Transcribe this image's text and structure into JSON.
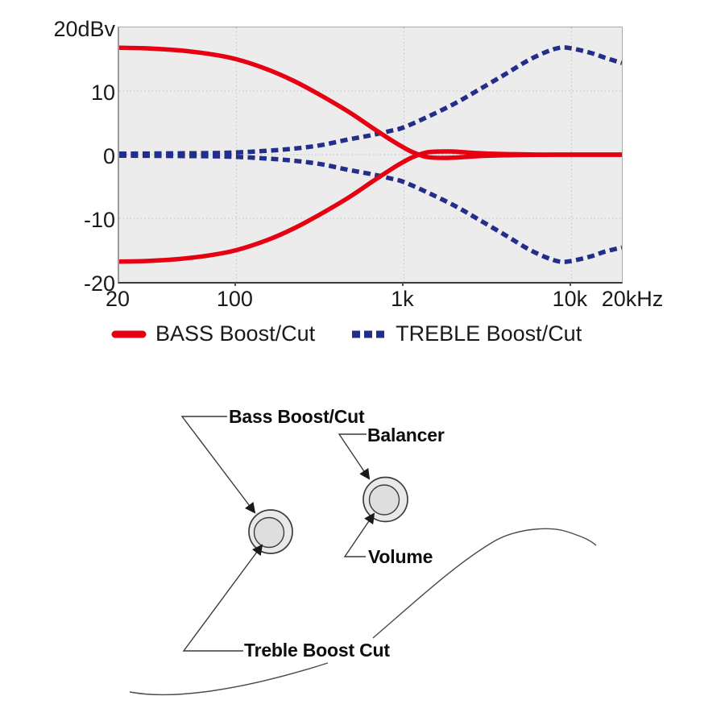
{
  "chart": {
    "legend": [
      {
        "label": "BASS Boost/Cut",
        "color": "#e60012",
        "dash": false
      },
      {
        "label": "TREBLE Boost/Cut",
        "color": "#232e8a",
        "dash": true
      }
    ]
  },
  "chart_data": {
    "type": "line",
    "title": "",
    "x_scale": "log",
    "xlim": [
      20,
      20000
    ],
    "ylim": [
      -20,
      20
    ],
    "x_unit": "Hz",
    "y_unit": "dBv",
    "grid": true,
    "legend_position": "bottom",
    "x_ticks": [
      {
        "f": 20,
        "label": "20"
      },
      {
        "f": 100,
        "label": "100"
      },
      {
        "f": 1000,
        "label": "1k"
      },
      {
        "f": 10000,
        "label": "10k"
      },
      {
        "f": 20000,
        "label": "20kHz"
      }
    ],
    "y_ticks": [
      {
        "v": 20,
        "label": "20dBv"
      },
      {
        "v": 10,
        "label": "10"
      },
      {
        "v": 0,
        "label": "0"
      },
      {
        "v": -10,
        "label": "-10"
      },
      {
        "v": -20,
        "label": "-20"
      }
    ],
    "series": [
      {
        "name": "BASS Boost",
        "color": "#e60012",
        "dashed": false,
        "points": [
          [
            20,
            16.8
          ],
          [
            30,
            16.7
          ],
          [
            45,
            16.4
          ],
          [
            70,
            15.8
          ],
          [
            100,
            15.0
          ],
          [
            150,
            13.5
          ],
          [
            220,
            11.6
          ],
          [
            320,
            9.3
          ],
          [
            470,
            6.7
          ],
          [
            650,
            4.2
          ],
          [
            850,
            2.2
          ],
          [
            1000,
            1.1
          ],
          [
            1150,
            0.3
          ],
          [
            1400,
            -0.4
          ],
          [
            1900,
            -0.5
          ],
          [
            2700,
            -0.25
          ],
          [
            4000,
            -0.1
          ],
          [
            8000,
            0
          ],
          [
            20000,
            0
          ]
        ]
      },
      {
        "name": "BASS Cut",
        "color": "#e60012",
        "dashed": false,
        "points": [
          [
            20,
            -16.8
          ],
          [
            30,
            -16.7
          ],
          [
            45,
            -16.4
          ],
          [
            70,
            -15.8
          ],
          [
            100,
            -15.0
          ],
          [
            150,
            -13.5
          ],
          [
            220,
            -11.6
          ],
          [
            320,
            -9.3
          ],
          [
            470,
            -6.7
          ],
          [
            650,
            -4.2
          ],
          [
            850,
            -2.2
          ],
          [
            1000,
            -1.1
          ],
          [
            1150,
            -0.3
          ],
          [
            1400,
            0.4
          ],
          [
            1900,
            0.5
          ],
          [
            2700,
            0.25
          ],
          [
            4000,
            0.1
          ],
          [
            8000,
            0
          ],
          [
            20000,
            0
          ]
        ]
      },
      {
        "name": "TREBLE Boost",
        "color": "#232e8a",
        "dashed": true,
        "points": [
          [
            20,
            0.15
          ],
          [
            40,
            0.2
          ],
          [
            70,
            0.25
          ],
          [
            100,
            0.35
          ],
          [
            150,
            0.6
          ],
          [
            220,
            0.95
          ],
          [
            320,
            1.5
          ],
          [
            470,
            2.4
          ],
          [
            650,
            3.1
          ],
          [
            850,
            3.8
          ],
          [
            1000,
            4.3
          ],
          [
            1400,
            6.0
          ],
          [
            2000,
            8.0
          ],
          [
            2800,
            10.2
          ],
          [
            4000,
            12.6
          ],
          [
            5500,
            14.8
          ],
          [
            7000,
            16.1
          ],
          [
            8500,
            16.8
          ],
          [
            10000,
            16.7
          ],
          [
            13000,
            16.0
          ],
          [
            16000,
            15.2
          ],
          [
            20000,
            14.4
          ]
        ]
      },
      {
        "name": "TREBLE Cut",
        "color": "#232e8a",
        "dashed": true,
        "points": [
          [
            20,
            -0.15
          ],
          [
            40,
            -0.2
          ],
          [
            70,
            -0.25
          ],
          [
            100,
            -0.35
          ],
          [
            150,
            -0.6
          ],
          [
            220,
            -0.95
          ],
          [
            320,
            -1.5
          ],
          [
            470,
            -2.4
          ],
          [
            650,
            -3.1
          ],
          [
            850,
            -3.8
          ],
          [
            1000,
            -4.3
          ],
          [
            1400,
            -6.0
          ],
          [
            2000,
            -8.0
          ],
          [
            2800,
            -10.2
          ],
          [
            4000,
            -12.6
          ],
          [
            5500,
            -14.8
          ],
          [
            7000,
            -16.1
          ],
          [
            8500,
            -16.8
          ],
          [
            10000,
            -16.7
          ],
          [
            13000,
            -16.0
          ],
          [
            16000,
            -15.2
          ],
          [
            20000,
            -14.6
          ]
        ]
      }
    ]
  },
  "diagram": {
    "labels": {
      "bass": "Bass Boost/Cut",
      "balancer": "Balancer",
      "volume": "Volume",
      "treble": "Treble Boost Cut"
    },
    "knobs": [
      {
        "name": "bass-treble-stacked-knob"
      },
      {
        "name": "volume-balancer-stacked-knob"
      }
    ]
  },
  "colors": {
    "bass_curve": "#e60012",
    "treble_curve": "#232e8a",
    "plot_background": "#ececec",
    "gridline": "#bfbfbf",
    "text": "#1a1a1a",
    "knob_fill": "#e4e4e4"
  }
}
